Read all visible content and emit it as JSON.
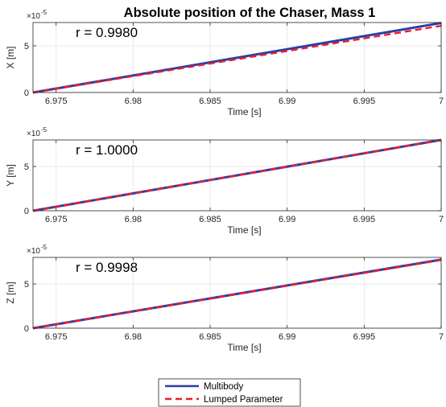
{
  "figure": {
    "title": "Absolute position of the Chaser, Mass 1"
  },
  "chart_data": [
    {
      "type": "line",
      "xlabel": "Time [s]",
      "ylabel": "X [m]",
      "exponent_label": "×10",
      "exponent_power": "-5",
      "annotation": "r = 0.9980",
      "xlim": [
        6.9735,
        7.0
      ],
      "ylim": [
        0,
        7.5
      ],
      "x_ticks": [
        6.975,
        6.98,
        6.985,
        6.99,
        6.995,
        7
      ],
      "x_tick_labels": [
        "6.975",
        "6.98",
        "6.985",
        "6.99",
        "6.995",
        "7"
      ],
      "y_ticks": [
        0,
        5
      ],
      "y_tick_labels": [
        "0",
        "5"
      ],
      "grid": true,
      "series": [
        {
          "name": "Multibody",
          "x": [
            6.9735,
            7.0
          ],
          "y": [
            0,
            7.45
          ]
        },
        {
          "name": "Lumped Parameter",
          "x": [
            6.9735,
            6.985,
            6.99,
            6.995,
            7.0
          ],
          "y": [
            0,
            3.1,
            4.45,
            5.8,
            7.15
          ]
        }
      ]
    },
    {
      "type": "line",
      "xlabel": "Time [s]",
      "ylabel": "Y [m]",
      "exponent_label": "×10",
      "exponent_power": "-5",
      "annotation": "r = 1.0000",
      "xlim": [
        6.9735,
        7.0
      ],
      "ylim": [
        0,
        8.0
      ],
      "x_ticks": [
        6.975,
        6.98,
        6.985,
        6.99,
        6.995,
        7
      ],
      "x_tick_labels": [
        "6.975",
        "6.98",
        "6.985",
        "6.99",
        "6.995",
        "7"
      ],
      "y_ticks": [
        0,
        5
      ],
      "y_tick_labels": [
        "0",
        "5"
      ],
      "grid": true,
      "series": [
        {
          "name": "Multibody",
          "x": [
            6.9735,
            7.0
          ],
          "y": [
            0,
            8.0
          ]
        },
        {
          "name": "Lumped Parameter",
          "x": [
            6.9735,
            7.0
          ],
          "y": [
            0,
            8.0
          ]
        }
      ]
    },
    {
      "type": "line",
      "xlabel": "Time [s]",
      "ylabel": "Z [m]",
      "exponent_label": "×10",
      "exponent_power": "-5",
      "annotation": "r = 0.9998",
      "xlim": [
        6.9735,
        7.0
      ],
      "ylim": [
        0,
        8.0
      ],
      "x_ticks": [
        6.975,
        6.98,
        6.985,
        6.99,
        6.995,
        7
      ],
      "x_tick_labels": [
        "6.975",
        "6.98",
        "6.985",
        "6.99",
        "6.995",
        "7"
      ],
      "y_ticks": [
        0,
        5
      ],
      "y_tick_labels": [
        "0",
        "5"
      ],
      "grid": true,
      "series": [
        {
          "name": "Multibody",
          "x": [
            6.9735,
            7.0
          ],
          "y": [
            0,
            7.75
          ]
        },
        {
          "name": "Lumped Parameter",
          "x": [
            6.9735,
            7.0
          ],
          "y": [
            0,
            7.7
          ]
        }
      ]
    }
  ],
  "legend": {
    "position": "bottom-center",
    "items": [
      {
        "label": "Multibody",
        "color": "#2b3fa8",
        "style": "solid"
      },
      {
        "label": "Lumped Parameter",
        "color": "#ee1c2c",
        "style": "dashed"
      }
    ]
  }
}
